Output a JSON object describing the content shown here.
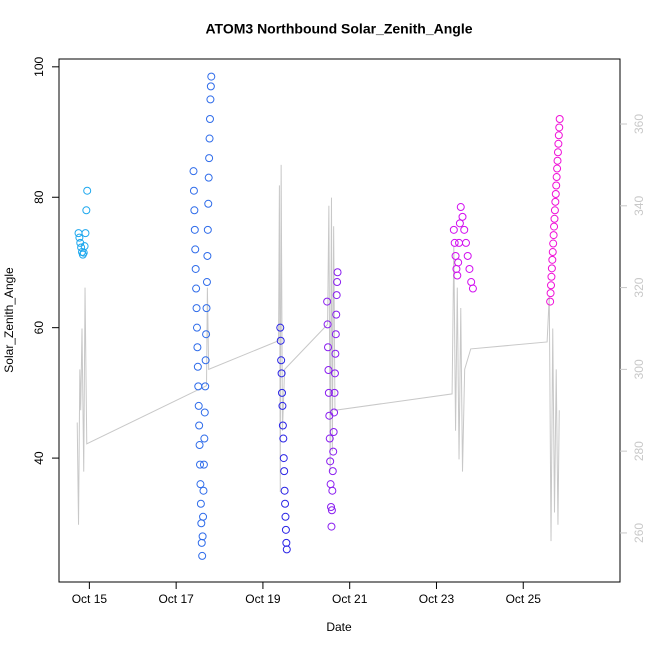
{
  "chart_data": {
    "type": "scatter",
    "title": "ATOM3 Northbound Solar_Zenith_Angle",
    "x_label": "Date",
    "y_label": "Solar_Zenith_Angle",
    "xlim": [
      14.3,
      27.23
    ],
    "ylim": [
      21,
      101.2
    ],
    "y2lim": [
      248,
      375.9
    ],
    "xticks": [
      {
        "value": 15,
        "label": "Oct 15"
      },
      {
        "value": 17,
        "label": "Oct 17"
      },
      {
        "value": 19,
        "label": "Oct 19"
      },
      {
        "value": 21,
        "label": "Oct 21"
      },
      {
        "value": 23,
        "label": "Oct 23"
      },
      {
        "value": 25,
        "label": "Oct 25"
      }
    ],
    "yticks": [
      40,
      60,
      80,
      100
    ],
    "y2ticks": [
      260,
      280,
      300,
      320,
      340,
      360
    ],
    "y2_color": "#c8c8c8",
    "series": [
      {
        "color": "#c8c8c8",
        "axis": "y2",
        "x": [
          14.72,
          14.75,
          14.78,
          14.8,
          14.83,
          14.87,
          14.9,
          14.94,
          17.7,
          17.72,
          17.75,
          19.36,
          19.38,
          19.4,
          19.42,
          19.45,
          19.5,
          20.49,
          20.52,
          20.55,
          20.58,
          20.6,
          20.63,
          20.66,
          23.36,
          23.4,
          23.44,
          23.48,
          23.52,
          23.56,
          23.6,
          23.65,
          23.79,
          25.55,
          25.6,
          25.64,
          25.68,
          25.72,
          25.76,
          25.8,
          25.83
        ],
        "values": [
          287,
          262,
          300,
          290,
          310,
          275,
          320,
          281.8,
          296,
          320,
          300,
          307,
          345,
          270,
          350,
          285,
          300,
          311,
          340,
          275,
          342,
          280,
          335,
          290,
          294,
          330,
          285,
          320,
          278,
          315,
          275,
          300,
          305,
          306.7,
          318,
          258,
          310,
          265,
          300,
          262,
          290
        ]
      },
      {
        "color": "#1ea8ee",
        "x": [
          14.75,
          14.77,
          14.79,
          14.81,
          14.83,
          14.85,
          14.87,
          14.89,
          14.91,
          14.93,
          14.95
        ],
        "values": [
          74.5,
          73.8,
          73,
          72.3,
          71.6,
          71.2,
          71.5,
          72.5,
          74.5,
          78,
          81
        ]
      },
      {
        "color": "#2f6cea",
        "x": [
          17.4,
          17.41,
          17.42,
          17.43,
          17.44,
          17.45,
          17.46,
          17.47,
          17.48,
          17.49,
          17.5,
          17.51,
          17.52,
          17.53,
          17.54,
          17.55,
          17.56,
          17.57,
          17.58,
          17.59,
          17.6,
          17.61,
          17.62,
          17.63,
          17.64,
          17.65,
          17.66,
          17.67,
          17.68,
          17.69,
          17.7,
          17.71,
          17.72,
          17.73,
          17.74,
          17.75,
          17.76,
          17.77,
          17.78,
          17.79,
          17.8,
          17.81
        ],
        "values": [
          84,
          81,
          78,
          75,
          72,
          69,
          66,
          63,
          60,
          57,
          54,
          51,
          48,
          45,
          42,
          39,
          36,
          33,
          30,
          27,
          25,
          28,
          31,
          35,
          39,
          43,
          47,
          51,
          55,
          59,
          63,
          67,
          71,
          75,
          79,
          83,
          86,
          89,
          92,
          95,
          97,
          98.5
        ]
      },
      {
        "color": "#2a24e6",
        "x": [
          19.4,
          19.41,
          19.42,
          19.43,
          19.44,
          19.45,
          19.46,
          19.47,
          19.48,
          19.49,
          19.5,
          19.51,
          19.52,
          19.53,
          19.54,
          19.55
        ],
        "values": [
          60,
          58,
          55,
          53,
          50,
          48,
          45,
          43,
          40,
          38,
          35,
          33,
          31,
          29,
          27,
          26
        ]
      },
      {
        "color": "#8a1ef0",
        "x": [
          20.48,
          20.49,
          20.5,
          20.51,
          20.52,
          20.53,
          20.54,
          20.55,
          20.56,
          20.57,
          20.58,
          20.59,
          20.6,
          20.61,
          20.62,
          20.63,
          20.64,
          20.65,
          20.66,
          20.67,
          20.68,
          20.69,
          20.7,
          20.71,
          20.72
        ],
        "values": [
          64,
          60.5,
          57,
          53.5,
          50,
          46.5,
          43,
          39.5,
          36,
          32.5,
          29.5,
          32,
          35,
          38,
          41,
          44,
          47,
          50,
          53,
          56,
          59,
          62,
          65,
          67,
          68.5
        ]
      },
      {
        "color": "#d20ff0",
        "x": [
          23.4,
          23.42,
          23.44,
          23.46,
          23.48,
          23.5,
          23.52,
          23.54,
          23.56,
          23.6,
          23.64,
          23.68,
          23.72,
          23.76,
          23.8,
          23.84
        ],
        "values": [
          75,
          73,
          71,
          69,
          68,
          70,
          73,
          76,
          78.5,
          77,
          75,
          73,
          71,
          69,
          67,
          66
        ]
      },
      {
        "color": "#f010d8",
        "x": [
          25.62,
          25.63,
          25.64,
          25.65,
          25.66,
          25.67,
          25.68,
          25.69,
          25.7,
          25.71,
          25.72,
          25.73,
          25.74,
          25.75,
          25.76,
          25.77,
          25.78,
          25.79,
          25.8,
          25.81,
          25.82,
          25.83,
          25.84
        ],
        "values": [
          64,
          65.3,
          66.5,
          67.8,
          69.1,
          70.4,
          71.6,
          72.9,
          74.2,
          75.5,
          76.7,
          78,
          79.3,
          80.5,
          81.8,
          83.1,
          84.4,
          85.6,
          86.9,
          88.2,
          89.5,
          90.7,
          92
        ]
      }
    ]
  }
}
